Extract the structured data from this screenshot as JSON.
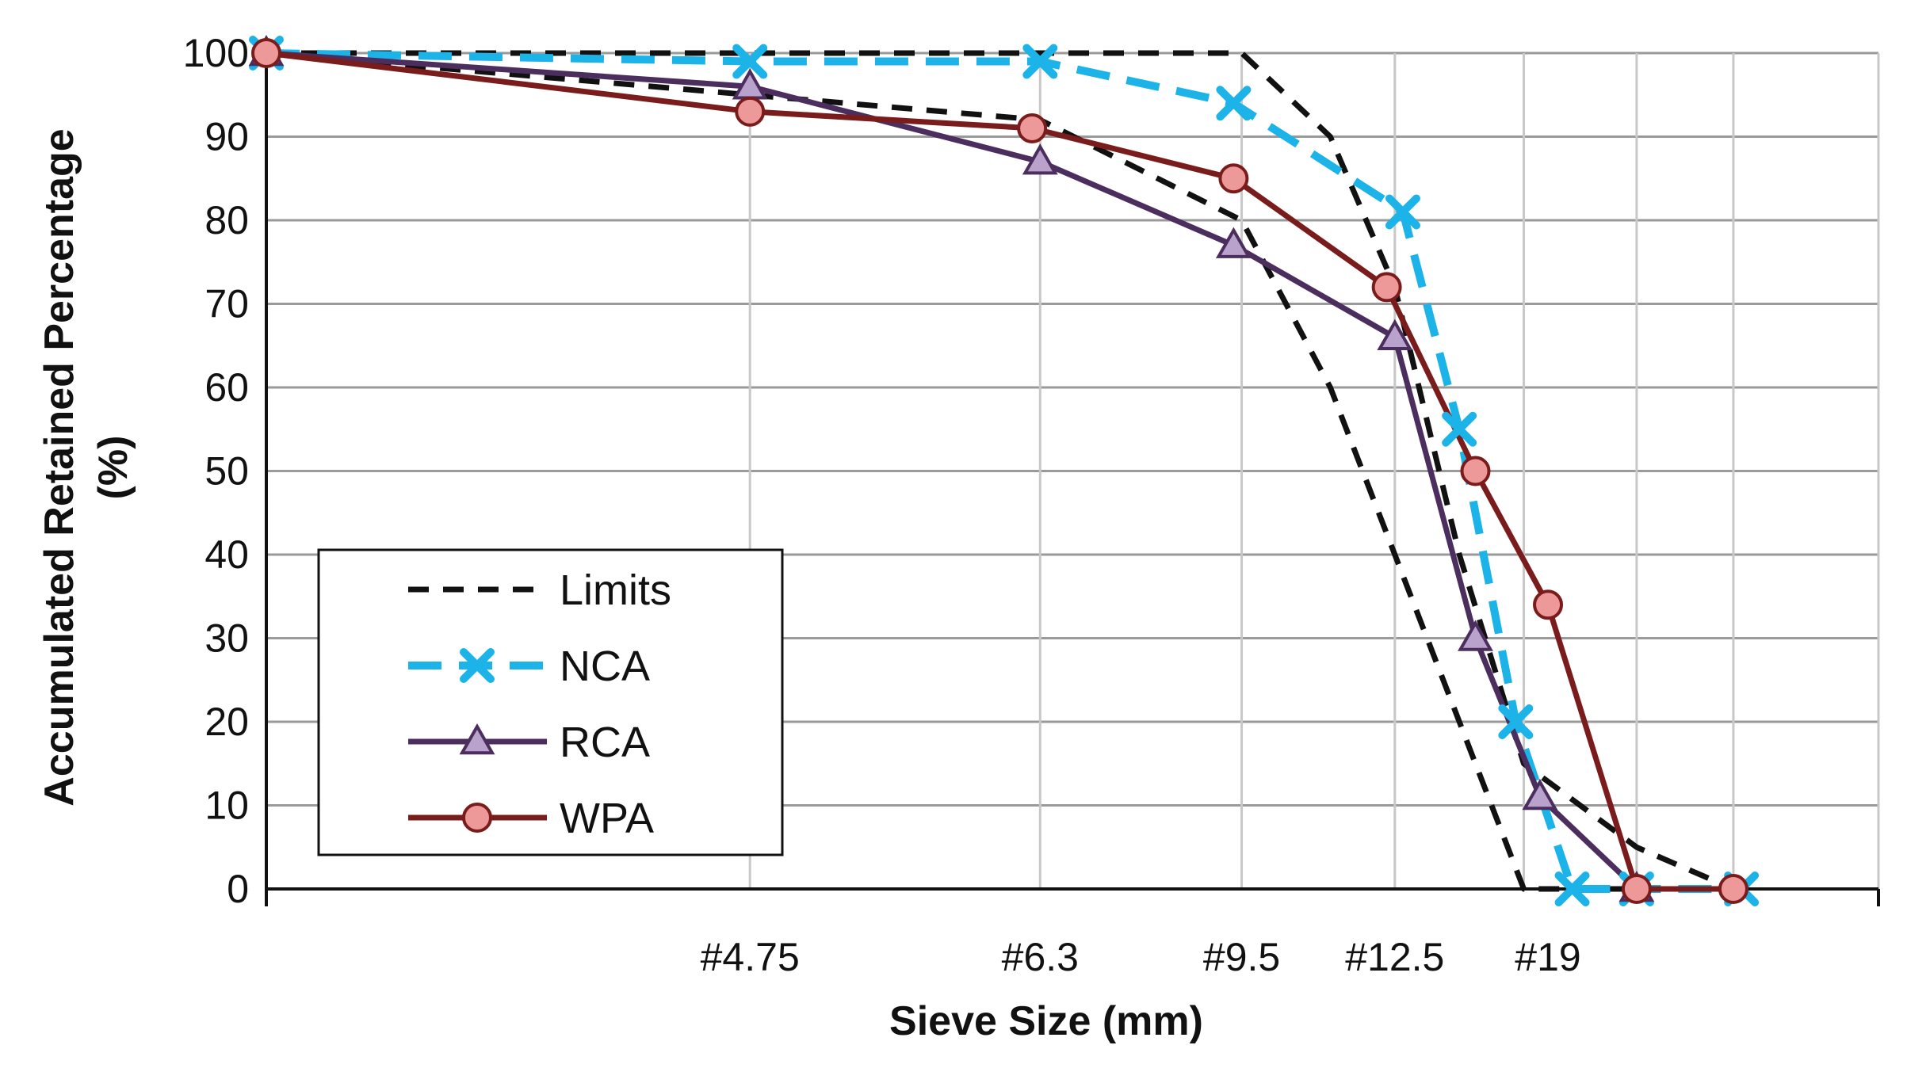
{
  "chart_data": {
    "type": "line",
    "title": "",
    "xlabel": "Sieve Size (mm)",
    "ylabel": "Accumulated Retained Percentage (%)",
    "ylabel_lines": [
      "Accumulated Retained Percentage",
      "(%)"
    ],
    "ylim": [
      0,
      100
    ],
    "yticks": [
      0,
      10,
      20,
      30,
      40,
      50,
      60,
      70,
      80,
      90,
      100
    ],
    "xlim": [
      0,
      10
    ],
    "x_grid": [
      3,
      4.8,
      6.05,
      7.0,
      7.8,
      8.5,
      9.1,
      10
    ],
    "xticks": [
      {
        "x": 3.0,
        "label": "#4.75"
      },
      {
        "x": 4.8,
        "label": "#6.3"
      },
      {
        "x": 6.05,
        "label": "#9.5"
      },
      {
        "x": 7.0,
        "label": "#12.5"
      },
      {
        "x": 7.95,
        "label": "#19"
      }
    ],
    "grid": true,
    "legend_position": "lower-left",
    "series": [
      {
        "name": "Limits",
        "color": "#111111",
        "style": "dashed",
        "marker": "none",
        "x": [
          0,
          3.0,
          4.8,
          6.05,
          6.6,
          7.0,
          7.4,
          7.8,
          8.5,
          9.1
        ],
        "y": [
          100,
          95,
          92,
          80,
          60,
          40,
          20,
          0,
          0,
          0
        ]
      },
      {
        "name": "Limits",
        "color": "#111111",
        "style": "dashed",
        "marker": "none",
        "x": [
          0,
          3.0,
          4.8,
          6.05,
          6.6,
          7.0,
          7.4,
          7.8,
          8.5,
          9.1
        ],
        "y": [
          100,
          100,
          100,
          100,
          90,
          72,
          40,
          15,
          5,
          0
        ]
      },
      {
        "name": "NCA",
        "color": "#1BB3E8",
        "style": "dashed",
        "marker": "x",
        "x": [
          0,
          3.0,
          4.8,
          6.0,
          7.05,
          7.4,
          7.75,
          8.1,
          8.5,
          9.15
        ],
        "y": [
          100,
          99,
          99,
          94,
          81,
          55,
          20,
          0,
          0,
          0
        ]
      },
      {
        "name": "RCA",
        "color": "#4B2E5E",
        "style": "solid",
        "marker": "triangle",
        "x": [
          0,
          3.0,
          4.8,
          6.0,
          7.0,
          7.5,
          7.9,
          8.5
        ],
        "y": [
          100,
          96,
          87,
          77,
          66,
          30,
          11,
          0
        ]
      },
      {
        "name": "WPA",
        "color": "#7A1C1C",
        "style": "solid",
        "marker": "circle",
        "x": [
          0,
          3.0,
          4.75,
          6.0,
          6.95,
          7.5,
          7.95,
          8.5,
          9.1
        ],
        "y": [
          100,
          93,
          91,
          85,
          72,
          50,
          34,
          0,
          0
        ]
      }
    ],
    "legend": [
      "Limits",
      "NCA",
      "RCA",
      "WPA"
    ]
  }
}
